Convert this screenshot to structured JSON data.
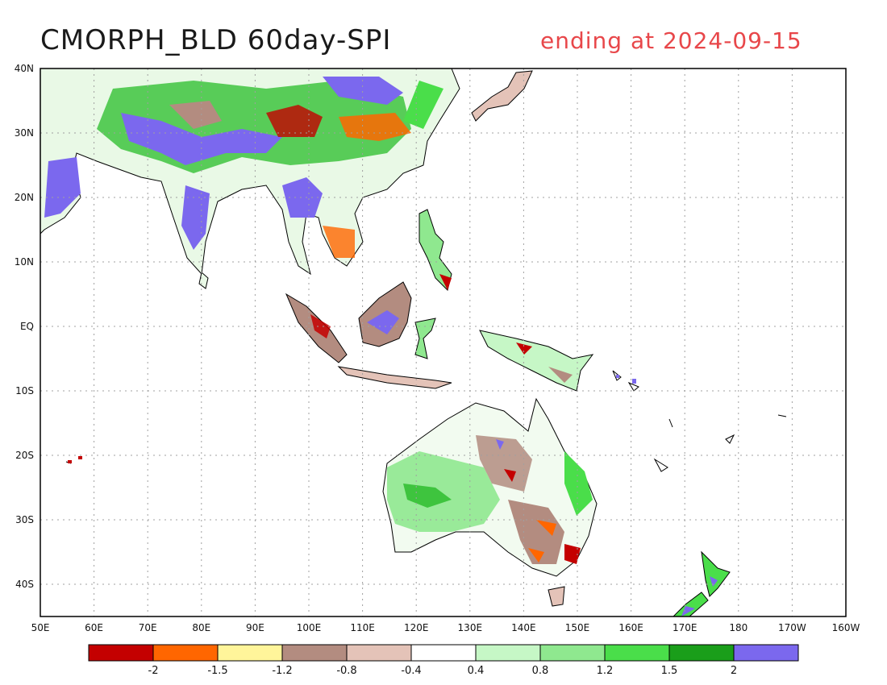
{
  "title": "CMORPH_BLD 60day-SPI",
  "subtitle": "ending at 2024-09-15",
  "map": {
    "lon_labels": [
      "50E",
      "60E",
      "70E",
      "80E",
      "90E",
      "100E",
      "110E",
      "120E",
      "130E",
      "140E",
      "150E",
      "160E",
      "170E",
      "180",
      "170W",
      "160W"
    ],
    "lat_labels": [
      "40N",
      "30N",
      "20N",
      "10N",
      "EQ",
      "10S",
      "20S",
      "30S",
      "40S"
    ],
    "lon_range": [
      50,
      200
    ],
    "lat_range": [
      -45,
      40
    ],
    "colors": {
      "land_neutral": "#ffffff",
      "coast": "#000000",
      "grid": "#a0a0a0",
      "ocean": "#ffffff"
    }
  },
  "colorbar": {
    "colors": [
      "#c40000",
      "#ff6600",
      "#fff59a",
      "#b38c80",
      "#e4c3b8",
      "#ffffff",
      "#c6f7c6",
      "#8fe88f",
      "#4ade4a",
      "#1a9e1a",
      "#7b68ee"
    ],
    "labels": [
      "-2",
      "-1.5",
      "-1.2",
      "-0.8",
      "-0.4",
      "0.4",
      "0.8",
      "1.2",
      "1.5",
      "2"
    ]
  }
}
